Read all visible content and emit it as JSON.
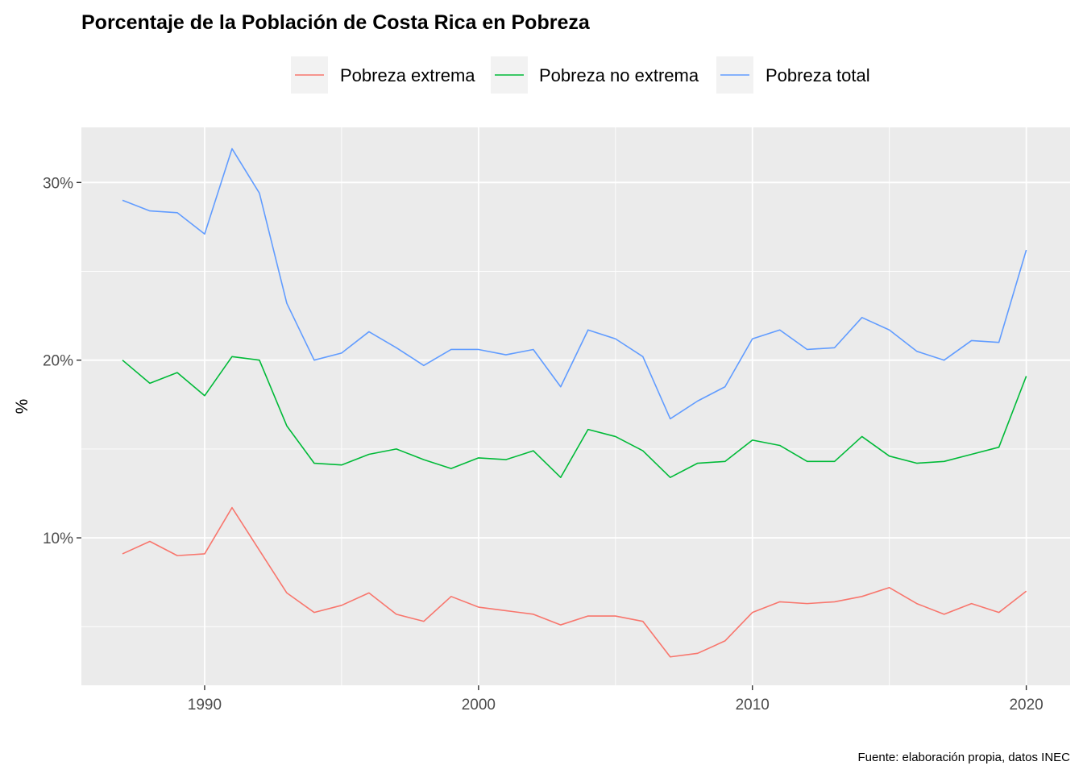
{
  "chart_data": {
    "type": "line",
    "title": "Porcentaje de la Población de Costa Rica en Pobreza",
    "xlabel": "",
    "ylabel": "%",
    "caption": "Fuente: elaboración propia, datos INEC",
    "x_ticks": [
      1990,
      2000,
      2010,
      2020
    ],
    "y_ticks": [
      10,
      20,
      30
    ],
    "y_tick_labels": [
      "10%",
      "20%",
      "30%"
    ],
    "xlim": [
      1985.5,
      2021.6
    ],
    "ylim": [
      1.7,
      33.1
    ],
    "grid": true,
    "legend_position": "top",
    "x": [
      1987,
      1988,
      1989,
      1990,
      1991,
      1992,
      1993,
      1994,
      1995,
      1996,
      1997,
      1998,
      1999,
      2000,
      2001,
      2002,
      2003,
      2004,
      2005,
      2006,
      2007,
      2008,
      2009,
      2010,
      2011,
      2012,
      2013,
      2014,
      2015,
      2016,
      2017,
      2018,
      2019,
      2020
    ],
    "series": [
      {
        "name": "Pobreza extrema",
        "color": "#F8766D",
        "values": [
          9.1,
          9.8,
          9.0,
          9.1,
          11.7,
          9.3,
          6.9,
          5.8,
          6.2,
          6.9,
          5.7,
          5.3,
          6.7,
          6.1,
          5.9,
          5.7,
          5.1,
          5.6,
          5.6,
          5.3,
          3.3,
          3.5,
          4.2,
          5.8,
          6.4,
          6.3,
          6.4,
          6.7,
          7.2,
          6.3,
          5.7,
          6.3,
          5.8,
          7.0
        ]
      },
      {
        "name": "Pobreza no extrema",
        "color": "#00BA38",
        "values": [
          20.0,
          18.7,
          19.3,
          18.0,
          20.2,
          20.0,
          16.3,
          14.2,
          14.1,
          14.7,
          15.0,
          14.4,
          13.9,
          14.5,
          14.4,
          14.9,
          13.4,
          16.1,
          15.7,
          14.9,
          13.4,
          14.2,
          14.3,
          15.5,
          15.2,
          14.3,
          14.3,
          15.7,
          14.6,
          14.2,
          14.3,
          14.7,
          15.1,
          19.1
        ]
      },
      {
        "name": "Pobreza total",
        "color": "#619CFF",
        "values": [
          29.0,
          28.4,
          28.3,
          27.1,
          31.9,
          29.4,
          23.2,
          20.0,
          20.4,
          21.6,
          20.7,
          19.7,
          20.6,
          20.6,
          20.3,
          20.6,
          18.5,
          21.7,
          21.2,
          20.2,
          16.7,
          17.7,
          18.5,
          21.2,
          21.7,
          20.6,
          20.7,
          22.4,
          21.7,
          20.5,
          20.0,
          21.1,
          21.0,
          26.2
        ]
      }
    ]
  }
}
